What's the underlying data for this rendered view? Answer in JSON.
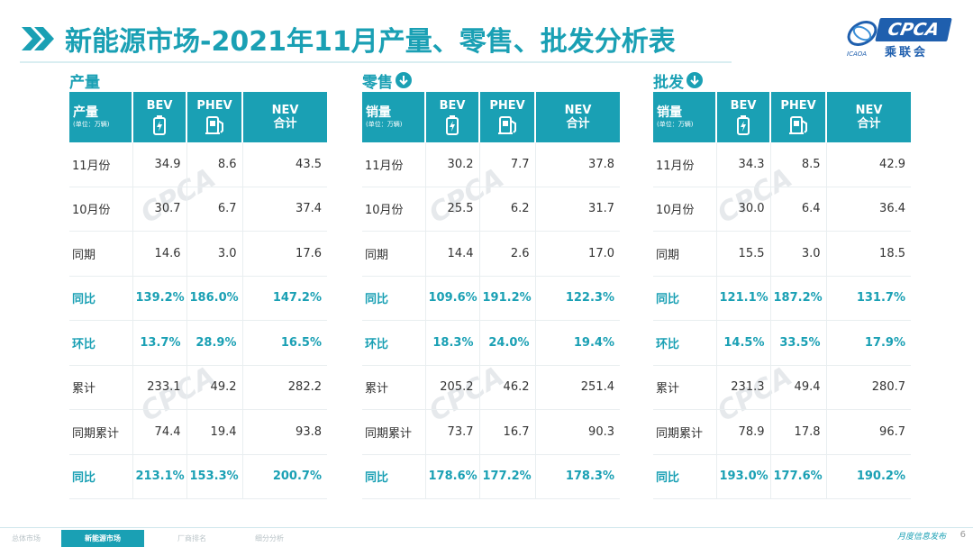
{
  "title": {
    "prefix": "新能源市场",
    "rest": "-2021年11月产量、零售、批发分析表"
  },
  "logo": {
    "text": "CPCA",
    "cn": "乘联会",
    "small": "ICAOA"
  },
  "panels": [
    {
      "title": "产量",
      "has_arrow": false,
      "header": {
        "label": "产量",
        "unit": "(单位：万辆)",
        "bev": "BEV",
        "phev": "PHEV",
        "nev_1": "NEV",
        "nev_2": "合计"
      },
      "rows": [
        {
          "label": "11月份",
          "bev": "34.9",
          "phev": "8.6",
          "nev": "43.5"
        },
        {
          "label": "10月份",
          "bev": "30.7",
          "phev": "6.7",
          "nev": "37.4"
        },
        {
          "label": "同期",
          "bev": "14.6",
          "phev": "3.0",
          "nev": "17.6"
        },
        {
          "label": "同比",
          "bev": "139.2%",
          "phev": "186.0%",
          "nev": "147.2%"
        },
        {
          "label": "环比",
          "bev": "13.7%",
          "phev": "28.9%",
          "nev": "16.5%"
        },
        {
          "label": "累计",
          "bev": "233.1",
          "phev": "49.2",
          "nev": "282.2"
        },
        {
          "label": "同期累计",
          "bev": "74.4",
          "phev": "19.4",
          "nev": "93.8"
        },
        {
          "label": "同比",
          "bev": "213.1%",
          "phev": "153.3%",
          "nev": "200.7%"
        }
      ]
    },
    {
      "title": "零售",
      "has_arrow": true,
      "header": {
        "label": "销量",
        "unit": "(单位：万辆)",
        "bev": "BEV",
        "phev": "PHEV",
        "nev_1": "NEV",
        "nev_2": "合计"
      },
      "rows": [
        {
          "label": "11月份",
          "bev": "30.2",
          "phev": "7.7",
          "nev": "37.8"
        },
        {
          "label": "10月份",
          "bev": "25.5",
          "phev": "6.2",
          "nev": "31.7"
        },
        {
          "label": "同期",
          "bev": "14.4",
          "phev": "2.6",
          "nev": "17.0"
        },
        {
          "label": "同比",
          "bev": "109.6%",
          "phev": "191.2%",
          "nev": "122.3%"
        },
        {
          "label": "环比",
          "bev": "18.3%",
          "phev": "24.0%",
          "nev": "19.4%"
        },
        {
          "label": "累计",
          "bev": "205.2",
          "phev": "46.2",
          "nev": "251.4"
        },
        {
          "label": "同期累计",
          "bev": "73.7",
          "phev": "16.7",
          "nev": "90.3"
        },
        {
          "label": "同比",
          "bev": "178.6%",
          "phev": "177.2%",
          "nev": "178.3%"
        }
      ]
    },
    {
      "title": "批发",
      "has_arrow": true,
      "header": {
        "label": "销量",
        "unit": "(单位：万辆)",
        "bev": "BEV",
        "phev": "PHEV",
        "nev_1": "NEV",
        "nev_2": "合计"
      },
      "rows": [
        {
          "label": "11月份",
          "bev": "34.3",
          "phev": "8.5",
          "nev": "42.9"
        },
        {
          "label": "10月份",
          "bev": "30.0",
          "phev": "6.4",
          "nev": "36.4"
        },
        {
          "label": "同期",
          "bev": "15.5",
          "phev": "3.0",
          "nev": "18.5"
        },
        {
          "label": "同比",
          "bev": "121.1%",
          "phev": "187.2%",
          "nev": "131.7%"
        },
        {
          "label": "环比",
          "bev": "14.5%",
          "phev": "33.5%",
          "nev": "17.9%"
        },
        {
          "label": "累计",
          "bev": "231.3",
          "phev": "49.4",
          "nev": "280.7"
        },
        {
          "label": "同期累计",
          "bev": "78.9",
          "phev": "17.8",
          "nev": "96.7"
        },
        {
          "label": "同比",
          "bev": "193.0%",
          "phev": "177.6%",
          "nev": "190.2%"
        }
      ]
    }
  ],
  "highlight_rows": [
    3,
    4,
    7
  ],
  "footer": {
    "tabs": [
      "总体市场",
      "新能源市场",
      "厂商排名",
      "细分分析"
    ],
    "active_tab": 1,
    "tagline": "月度信息发布",
    "page": "6"
  },
  "colors": {
    "accent": "#1aa0b4",
    "brand_blue": "#1f5fae"
  }
}
